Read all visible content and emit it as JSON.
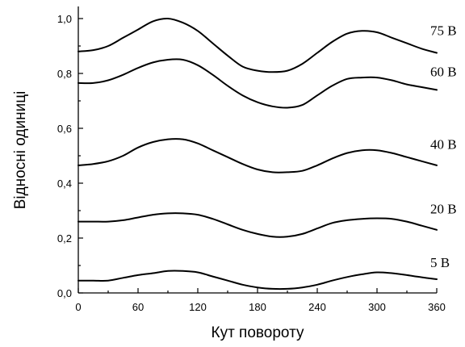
{
  "chart_data": {
    "type": "line",
    "xlabel": "Кут повороту",
    "ylabel": "Відносні одиниці",
    "xlim": [
      0,
      360
    ],
    "ylim": [
      0,
      1.0
    ],
    "x_ticks": [
      0,
      60,
      120,
      180,
      240,
      300,
      360
    ],
    "x_tick_labels": [
      "0",
      "60",
      "120",
      "180",
      "240",
      "300",
      "360"
    ],
    "y_ticks": [
      0.0,
      0.2,
      0.4,
      0.6,
      0.8,
      1.0
    ],
    "y_tick_labels": [
      "0,0",
      "0,2",
      "0,4",
      "0,6",
      "0,8",
      "1,0"
    ],
    "grid": false,
    "series": [
      {
        "name": "75 В",
        "x": [
          0,
          15,
          30,
          45,
          60,
          75,
          90,
          105,
          120,
          135,
          150,
          165,
          180,
          195,
          210,
          225,
          240,
          255,
          270,
          285,
          300,
          315,
          330,
          345,
          360
        ],
        "y": [
          0.88,
          0.885,
          0.9,
          0.93,
          0.96,
          0.99,
          1.0,
          0.985,
          0.955,
          0.91,
          0.865,
          0.825,
          0.81,
          0.805,
          0.81,
          0.835,
          0.875,
          0.915,
          0.945,
          0.955,
          0.95,
          0.93,
          0.91,
          0.89,
          0.875
        ]
      },
      {
        "name": "60 В",
        "x": [
          0,
          15,
          30,
          45,
          60,
          75,
          90,
          105,
          120,
          135,
          150,
          165,
          180,
          195,
          210,
          225,
          240,
          255,
          270,
          285,
          300,
          315,
          330,
          345,
          360
        ],
        "y": [
          0.765,
          0.765,
          0.775,
          0.795,
          0.82,
          0.84,
          0.85,
          0.85,
          0.83,
          0.795,
          0.755,
          0.72,
          0.695,
          0.68,
          0.675,
          0.685,
          0.72,
          0.755,
          0.78,
          0.785,
          0.785,
          0.775,
          0.76,
          0.75,
          0.74
        ]
      },
      {
        "name": "40 В",
        "x": [
          0,
          15,
          30,
          45,
          60,
          75,
          90,
          105,
          120,
          135,
          150,
          165,
          180,
          195,
          210,
          225,
          240,
          255,
          270,
          285,
          300,
          315,
          330,
          345,
          360
        ],
        "y": [
          0.465,
          0.47,
          0.48,
          0.5,
          0.53,
          0.55,
          0.56,
          0.56,
          0.545,
          0.52,
          0.495,
          0.47,
          0.45,
          0.44,
          0.44,
          0.445,
          0.465,
          0.49,
          0.51,
          0.52,
          0.52,
          0.51,
          0.495,
          0.48,
          0.465
        ]
      },
      {
        "name": "20 В",
        "x": [
          0,
          15,
          30,
          45,
          60,
          75,
          90,
          105,
          120,
          135,
          150,
          165,
          180,
          195,
          210,
          225,
          240,
          255,
          270,
          285,
          300,
          315,
          330,
          345,
          360
        ],
        "y": [
          0.26,
          0.26,
          0.26,
          0.265,
          0.275,
          0.285,
          0.29,
          0.29,
          0.285,
          0.27,
          0.25,
          0.23,
          0.215,
          0.205,
          0.205,
          0.215,
          0.235,
          0.255,
          0.265,
          0.27,
          0.272,
          0.27,
          0.26,
          0.245,
          0.23
        ]
      },
      {
        "name": "5 В",
        "x": [
          0,
          15,
          30,
          45,
          60,
          75,
          90,
          105,
          120,
          135,
          150,
          165,
          180,
          195,
          210,
          225,
          240,
          255,
          270,
          285,
          300,
          315,
          330,
          345,
          360
        ],
        "y": [
          0.045,
          0.045,
          0.045,
          0.055,
          0.065,
          0.072,
          0.08,
          0.08,
          0.075,
          0.06,
          0.045,
          0.03,
          0.02,
          0.015,
          0.015,
          0.02,
          0.03,
          0.045,
          0.058,
          0.068,
          0.075,
          0.072,
          0.065,
          0.057,
          0.05
        ]
      }
    ]
  }
}
